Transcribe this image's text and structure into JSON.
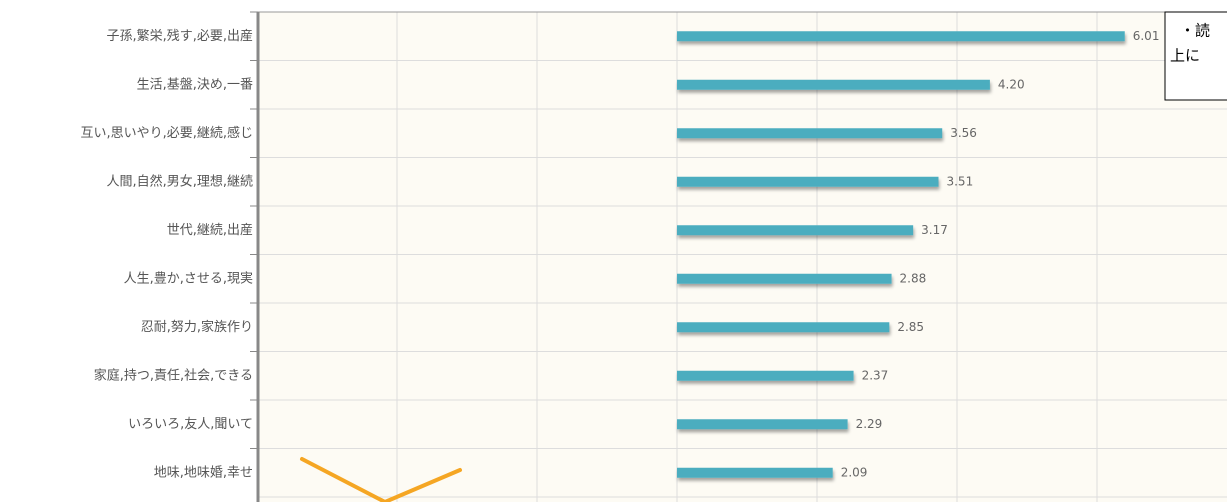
{
  "chart_data": {
    "type": "bar",
    "orientation": "horizontal",
    "categories": [
      "子孫,繁栄,残す,必要,出産",
      "生活,基盤,決め,一番",
      "互い,思いやり,必要,継続,感じ",
      "人間,自然,男女,理想,継続",
      "世代,継続,出産",
      "人生,豊か,させる,現実",
      "忍耐,努力,家族作り",
      "家庭,持つ,責任,社会,できる",
      "いろいろ,友人,聞いて",
      "地味,地味婚,幸せ"
    ],
    "values": [
      6.01,
      4.2,
      3.56,
      3.51,
      3.17,
      2.88,
      2.85,
      2.37,
      2.29,
      2.09
    ],
    "value_labels": [
      "6.01",
      "4.20",
      "3.56",
      "3.51",
      "3.17",
      "2.88",
      "2.85",
      "2.37",
      "2.29",
      "2.09"
    ],
    "color": "#4badbf",
    "annotation": [
      "・読",
      "上に"
    ]
  }
}
